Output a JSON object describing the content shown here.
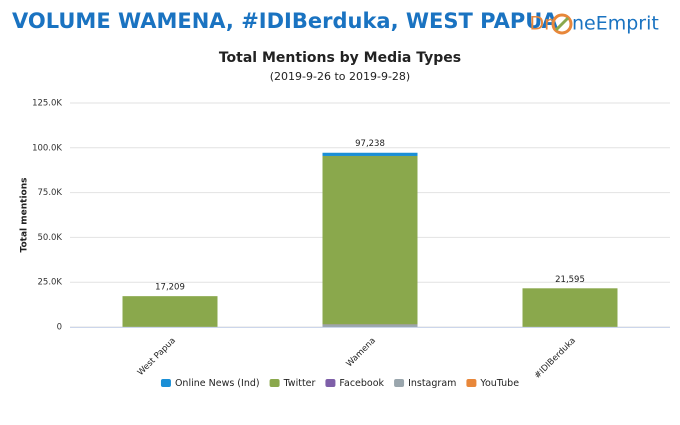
{
  "header": {
    "title": "VOLUME WAMENA, #IDIBerduka, WEST PAPUA",
    "logo_left": "Dr",
    "logo_right": "neEmprit"
  },
  "chart_data": {
    "type": "stacked_bar",
    "title": "Total Mentions by Media Types",
    "subtitle": "(2019-9-26 to 2019-9-28)",
    "y_label": "Total mentions",
    "categories": [
      "West Papua",
      "Wamena",
      "#IDIBerduka"
    ],
    "series": [
      {
        "name": "Online News (Ind)",
        "color": "#1a8fd6",
        "values": [
          0,
          1800,
          0
        ]
      },
      {
        "name": "Twitter",
        "color": "#8aa84c",
        "values": [
          17100,
          94000,
          21500
        ]
      },
      {
        "name": "Facebook",
        "color": "#7e5fa8",
        "values": [
          9,
          200,
          15
        ]
      },
      {
        "name": "Instagram",
        "color": "#9aa6ad",
        "values": [
          100,
          1200,
          80
        ]
      },
      {
        "name": "YouTube",
        "color": "#e8873a",
        "values": [
          0,
          38,
          0
        ]
      }
    ],
    "totals": [
      17209,
      97238,
      21595
    ],
    "total_labels": [
      "17,209",
      "97,238",
      "21,595"
    ],
    "ylim": [
      0,
      125000
    ],
    "yticks": [
      0,
      {
        "value": 25000,
        "label": "25.0K"
      },
      {
        "value": 50000,
        "label": "50.0K"
      },
      {
        "value": 75000,
        "label": "75.0K"
      },
      {
        "value": 100000,
        "label": "100.0K"
      },
      {
        "value": 125000,
        "label": "125.0K"
      }
    ],
    "grid": true
  }
}
